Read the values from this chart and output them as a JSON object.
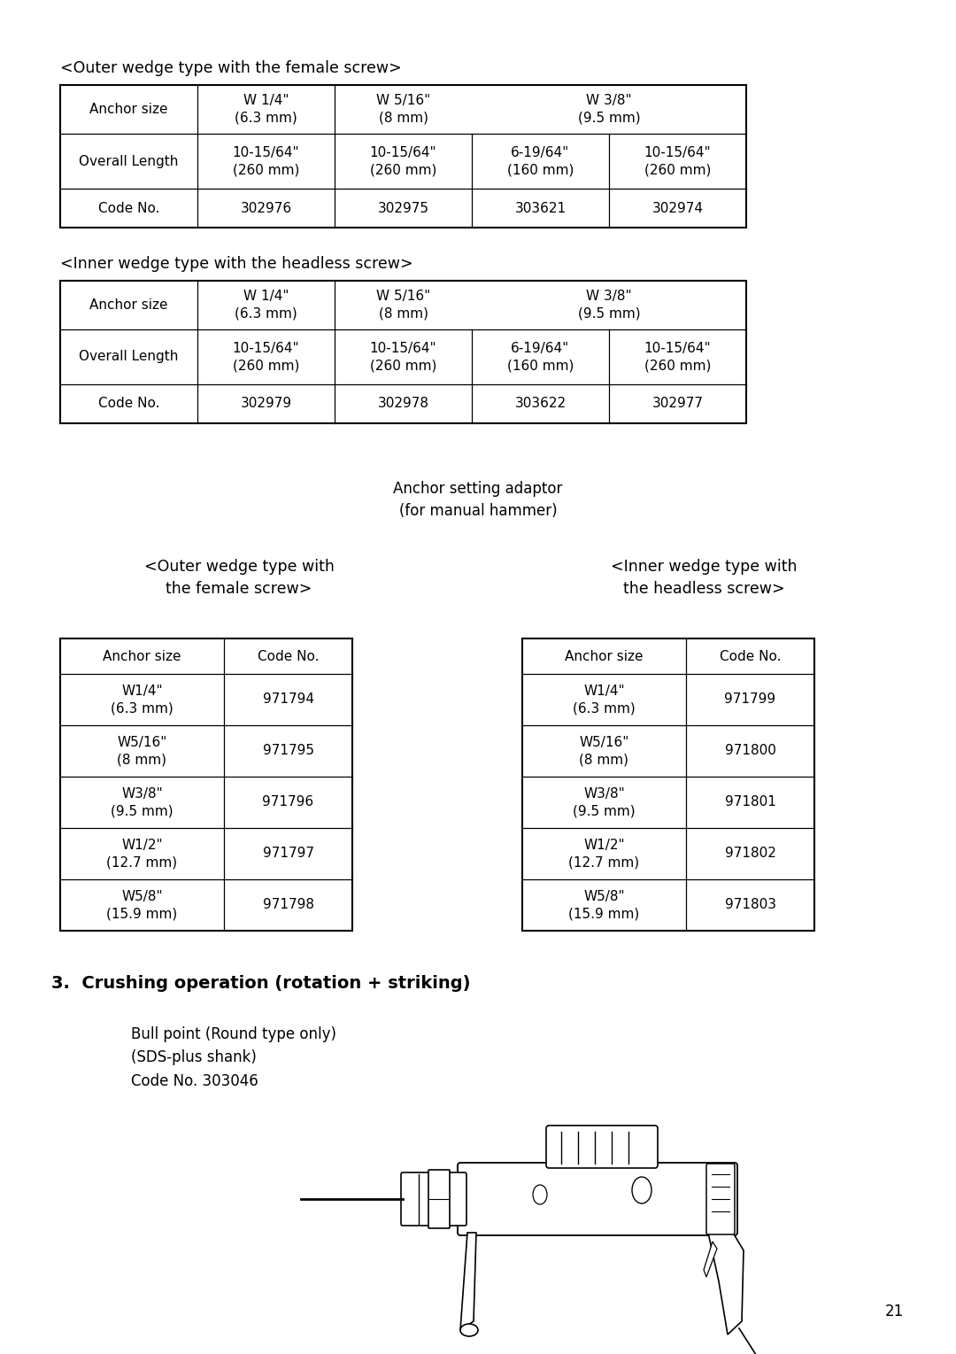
{
  "bg_color": "#ffffff",
  "page_number": "21",
  "section1_title": "<Outer wedge type with the female screw>",
  "section2_title": "<Inner wedge type with the headless screw>",
  "adaptor_label": "Anchor setting adaptor\n(for manual hammer)",
  "section3_title": "<Outer wedge type with\nthe female screw>",
  "section4_title": "<Inner wedge type with\nthe headless screw>",
  "section5_title": "3.  Crushing operation (rotation + striking)",
  "bull_point_text": "Bull point (Round type only)\n(SDS-plus shank)\nCode No. 303046",
  "table1_cells": [
    [
      "Anchor size",
      "W 1/4\"\n(6.3 mm)",
      "W 5/16\"\n(8 mm)",
      "W 3/8\"\n(9.5 mm)",
      ""
    ],
    [
      "Overall Length",
      "10-15/64\"\n(260 mm)",
      "10-15/64\"\n(260 mm)",
      "6-19/64\"\n(160 mm)",
      "10-15/64\"\n(260 mm)"
    ],
    [
      "Code No.",
      "302976",
      "302975",
      "303621",
      "302974"
    ]
  ],
  "table2_cells": [
    [
      "Anchor size",
      "W 1/4\"\n(6.3 mm)",
      "W 5/16\"\n(8 mm)",
      "W 3/8\"\n(9.5 mm)",
      ""
    ],
    [
      "Overall Length",
      "10-15/64\"\n(260 mm)",
      "10-15/64\"\n(260 mm)",
      "6-19/64\"\n(160 mm)",
      "10-15/64\"\n(260 mm)"
    ],
    [
      "Code No.",
      "302979",
      "302978",
      "303622",
      "302977"
    ]
  ],
  "table3_cells": [
    [
      "Anchor size",
      "Code No."
    ],
    [
      "W1/4\"\n(6.3 mm)",
      "971794"
    ],
    [
      "W5/16\"\n(8 mm)",
      "971795"
    ],
    [
      "W3/8\"\n(9.5 mm)",
      "971796"
    ],
    [
      "W1/2\"\n(12.7 mm)",
      "971797"
    ],
    [
      "W5/8\"\n(15.9 mm)",
      "971798"
    ]
  ],
  "table4_cells": [
    [
      "Anchor size",
      "Code No."
    ],
    [
      "W1/4\"\n(6.3 mm)",
      "971799"
    ],
    [
      "W5/16\"\n(8 mm)",
      "971800"
    ],
    [
      "W3/8\"\n(9.5 mm)",
      "971801"
    ],
    [
      "W1/2\"\n(12.7 mm)",
      "971802"
    ],
    [
      "W5/8\"\n(15.9 mm)",
      "971803"
    ]
  ]
}
